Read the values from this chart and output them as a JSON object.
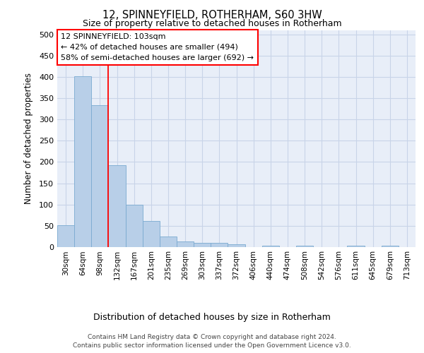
{
  "title1": "12, SPINNEYFIELD, ROTHERHAM, S60 3HW",
  "title2": "Size of property relative to detached houses in Rotherham",
  "xlabel": "Distribution of detached houses by size in Rotherham",
  "ylabel": "Number of detached properties",
  "bar_labels": [
    "30sqm",
    "64sqm",
    "98sqm",
    "132sqm",
    "167sqm",
    "201sqm",
    "235sqm",
    "269sqm",
    "303sqm",
    "337sqm",
    "372sqm",
    "406sqm",
    "440sqm",
    "474sqm",
    "508sqm",
    "542sqm",
    "576sqm",
    "611sqm",
    "645sqm",
    "679sqm",
    "713sqm"
  ],
  "bar_values": [
    52,
    401,
    333,
    192,
    100,
    62,
    25,
    14,
    10,
    10,
    6,
    0,
    4,
    0,
    4,
    0,
    0,
    4,
    0,
    4,
    0
  ],
  "bar_color": "#b8cfe8",
  "bar_edge_color": "#7aaad0",
  "grid_color": "#c8d4e8",
  "bg_color": "#e8eef8",
  "annotation_box_text": "12 SPINNEYFIELD: 103sqm\n← 42% of detached houses are smaller (494)\n58% of semi-detached houses are larger (692) →",
  "footnote1": "Contains HM Land Registry data © Crown copyright and database right 2024.",
  "footnote2": "Contains public sector information licensed under the Open Government Licence v3.0.",
  "ylim": [
    0,
    510
  ],
  "yticks": [
    0,
    50,
    100,
    150,
    200,
    250,
    300,
    350,
    400,
    450,
    500
  ]
}
